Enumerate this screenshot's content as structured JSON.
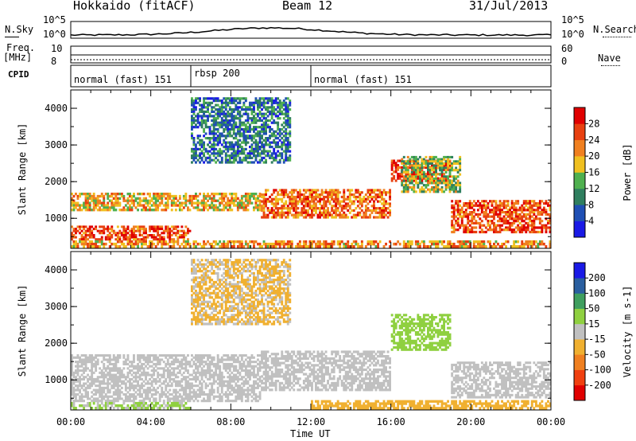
{
  "header": {
    "title": "Hokkaido (fitACF)",
    "beam": "Beam 12",
    "date": "31/Jul/2013"
  },
  "noise_panel": {
    "left_label": "N.Sky",
    "right_label": "N.Search",
    "left_ticks": [
      "10^5",
      "10^0"
    ],
    "right_ticks": [
      "10^5",
      "10^0"
    ]
  },
  "freq_panel": {
    "left_label_1": "Freq.",
    "left_label_2": "[MHz]",
    "left_ticks": [
      "10",
      "8"
    ],
    "right_label": "Nave",
    "right_ticks": [
      "60",
      "0"
    ]
  },
  "cpid": {
    "label": "CPID",
    "segments": [
      {
        "name": "normal (fast) 151",
        "start": 0,
        "end": 6
      },
      {
        "name": "rbsp 200",
        "start": 6,
        "end": 12
      },
      {
        "name": "normal (fast) 151",
        "start": 12,
        "end": 24
      }
    ]
  },
  "x_axis": {
    "label": "Time UT",
    "ticks": [
      "00:00",
      "04:00",
      "08:00",
      "12:00",
      "16:00",
      "20:00",
      "00:00"
    ],
    "range": [
      0,
      24
    ]
  },
  "chart_data": [
    {
      "type": "heatmap",
      "ylabel": "Slant Range [km]",
      "yticks": [
        "4000",
        "3000",
        "2000",
        "1000"
      ],
      "ylim": [
        180,
        4500
      ],
      "colorbar": {
        "label": "Power [dB]",
        "ticks": [
          "28",
          "24",
          "20",
          "16",
          "12",
          "8",
          "4"
        ],
        "range": [
          0,
          30
        ],
        "colors": [
          "#1a1ae6",
          "#1f4fb4",
          "#2f7f5f",
          "#4fb04f",
          "#f0c020",
          "#f08020",
          "#e84010",
          "#e00000"
        ]
      },
      "bands": [
        {
          "t0": 0,
          "t1": 6,
          "r0": 400,
          "r1": 800,
          "level": 24
        },
        {
          "t0": 0,
          "t1": 9.5,
          "r0": 1200,
          "r1": 1700,
          "level": 18
        },
        {
          "t0": 9.5,
          "t1": 16,
          "r0": 1000,
          "r1": 1800,
          "level": 22
        },
        {
          "t0": 16,
          "t1": 19,
          "r0": 2000,
          "r1": 2600,
          "level": 26
        },
        {
          "t0": 19,
          "t1": 24,
          "r0": 600,
          "r1": 1500,
          "level": 24
        },
        {
          "t0": 0,
          "t1": 24,
          "r0": 200,
          "r1": 400,
          "level": 20
        },
        {
          "t0": 6,
          "t1": 11,
          "r0": 2500,
          "r1": 4300,
          "level": 8
        },
        {
          "t0": 16.5,
          "t1": 19.5,
          "r0": 1700,
          "r1": 2700,
          "level": 14
        }
      ]
    },
    {
      "type": "heatmap",
      "ylabel": "Slant Range [km]",
      "yticks": [
        "4000",
        "3000",
        "2000",
        "1000"
      ],
      "ylim": [
        180,
        4500
      ],
      "colorbar": {
        "label": "Velocity [m s-1]",
        "ticks": [
          "200",
          "100",
          "50",
          "15",
          "-15",
          "-50",
          "-100",
          "-200"
        ],
        "range": [
          -250,
          250
        ],
        "colors": [
          "#e00000",
          "#f04010",
          "#f08020",
          "#f0b030",
          "#c0c0c0",
          "#8fd040",
          "#3f9f5f",
          "#2a5fa0",
          "#1a1ae6"
        ]
      },
      "bands": [
        {
          "t0": 0,
          "t1": 9.5,
          "r0": 400,
          "r1": 1700,
          "level": 0
        },
        {
          "t0": 9.5,
          "t1": 16,
          "r0": 700,
          "r1": 1800,
          "level": 0
        },
        {
          "t0": 16,
          "t1": 19,
          "r0": 1800,
          "r1": 2800,
          "level": 35
        },
        {
          "t0": 19,
          "t1": 24,
          "r0": 500,
          "r1": 1500,
          "level": 0
        },
        {
          "t0": 0,
          "t1": 6,
          "r0": 200,
          "r1": 400,
          "level": 30
        },
        {
          "t0": 12,
          "t1": 24,
          "r0": 200,
          "r1": 450,
          "level": -40
        },
        {
          "t0": 6,
          "t1": 11,
          "r0": 2500,
          "r1": 4300,
          "level": -30
        }
      ]
    }
  ]
}
